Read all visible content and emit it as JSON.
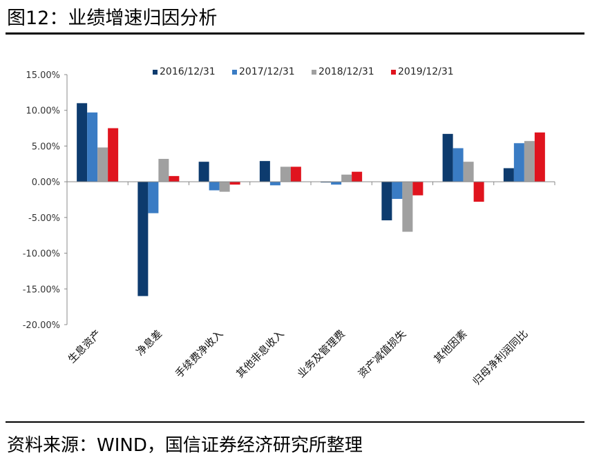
{
  "figure": {
    "title": "图12：业绩增速归因分析",
    "source": "资料来源：WIND，国信证券经济研究所整理"
  },
  "chart_data": {
    "type": "bar",
    "title": "业绩增速归因分析",
    "xlabel": "",
    "ylabel": "",
    "ylim": [
      -20,
      15
    ],
    "ytick_values": [
      15,
      10,
      5,
      0,
      -5,
      -10,
      -15,
      -20
    ],
    "ytick_labels": [
      "15.00%",
      "10.00%",
      "5.00%",
      "0.00%",
      "-5.00%",
      "-10.00%",
      "-15.00%",
      "-20.00%"
    ],
    "legend_position": "top",
    "categories": [
      "生息资产",
      "净息差",
      "手续费净收入",
      "其他非息收入",
      "业务及管理费",
      "资产减值损失",
      "其他因素",
      "归母净利润同比"
    ],
    "series": [
      {
        "name": "2016/12/31",
        "color": "#0d3b6e",
        "values": [
          11.0,
          -16.0,
          2.8,
          2.9,
          -0.1,
          -5.4,
          6.7,
          1.9
        ]
      },
      {
        "name": "2017/12/31",
        "color": "#3a7cc4",
        "values": [
          9.7,
          -4.4,
          -1.2,
          -0.5,
          -0.4,
          -2.4,
          4.7,
          5.4
        ]
      },
      {
        "name": "2018/12/31",
        "color": "#a0a0a0",
        "values": [
          4.8,
          3.2,
          -1.4,
          2.1,
          1.0,
          -7.0,
          2.8,
          5.7
        ]
      },
      {
        "name": "2019/12/31",
        "color": "#e0141e",
        "values": [
          7.5,
          0.8,
          -0.4,
          2.1,
          1.4,
          -1.9,
          -2.8,
          6.9
        ]
      }
    ]
  }
}
